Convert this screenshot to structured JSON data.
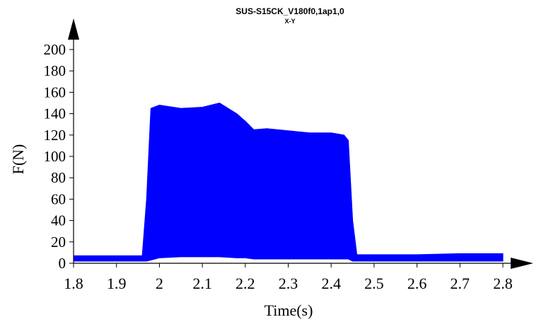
{
  "chart_data": {
    "type": "line",
    "title": "SUS-S15CK_V180f0,1ap1,0",
    "subtitle": "X-Y",
    "xlabel": "Time(s)",
    "ylabel": "F(N)",
    "xlim": [
      1.8,
      2.8
    ],
    "ylim": [
      0,
      200
    ],
    "x_ticks": [
      "1.8",
      "1.9",
      "2",
      "2.1",
      "2.2",
      "2.3",
      "2.4",
      "2.5",
      "2.6",
      "2.7",
      "2.8"
    ],
    "y_ticks": [
      "0",
      "20",
      "40",
      "60",
      "80",
      "100",
      "120",
      "140",
      "160",
      "180",
      "200"
    ],
    "grid": false,
    "series": [
      {
        "color": "#0000ff",
        "envelope": {
          "x": [
            1.8,
            1.96,
            1.97,
            1.98,
            2.0,
            2.05,
            2.1,
            2.14,
            2.18,
            2.2,
            2.22,
            2.25,
            2.3,
            2.35,
            2.4,
            2.43,
            2.44,
            2.45,
            2.46,
            2.5,
            2.6,
            2.7,
            2.8
          ],
          "upper": [
            7,
            7,
            60,
            145,
            148,
            145,
            146,
            150,
            140,
            133,
            125,
            126,
            124,
            122,
            122,
            120,
            115,
            40,
            8,
            8,
            8,
            9,
            9
          ],
          "lower": [
            2,
            2,
            2,
            3,
            5,
            6,
            6,
            6,
            5,
            5,
            4,
            4,
            4,
            4,
            4,
            4,
            4,
            2,
            2,
            2,
            2,
            2,
            2
          ]
        }
      }
    ]
  }
}
